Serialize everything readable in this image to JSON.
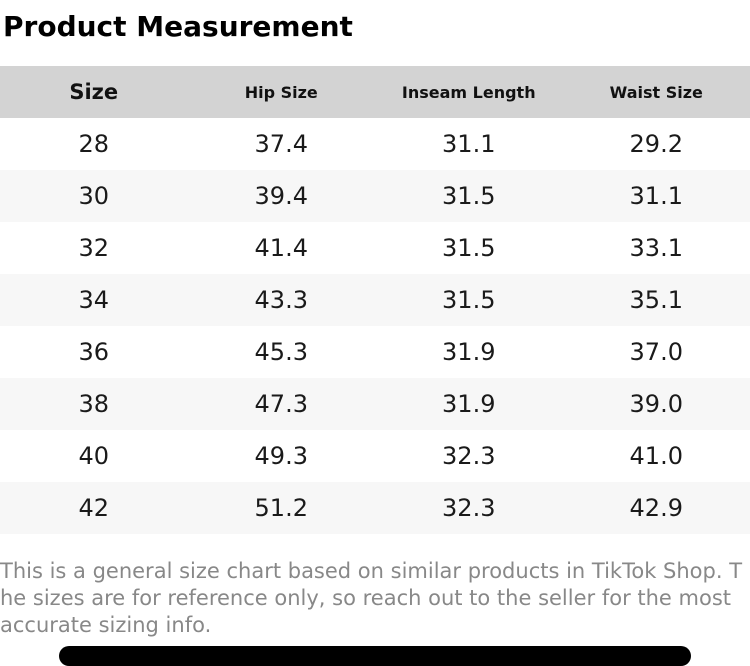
{
  "title": "Product Measurement",
  "table": {
    "columns": [
      "Size",
      "Hip Size",
      "Inseam Length",
      "Waist Size"
    ],
    "rows": [
      [
        "28",
        "37.4",
        "31.1",
        "29.2"
      ],
      [
        "30",
        "39.4",
        "31.5",
        "31.1"
      ],
      [
        "32",
        "41.4",
        "31.5",
        "33.1"
      ],
      [
        "34",
        "43.3",
        "31.5",
        "35.1"
      ],
      [
        "36",
        "45.3",
        "31.9",
        "37.0"
      ],
      [
        "38",
        "47.3",
        "31.9",
        "39.0"
      ],
      [
        "40",
        "49.3",
        "32.3",
        "41.0"
      ],
      [
        "42",
        "51.2",
        "32.3",
        "42.9"
      ]
    ]
  },
  "disclaimer": "This is a general size chart based on similar products in TikTok Shop. The sizes are for reference only, so reach out to the seller for the most accurate sizing info.",
  "chart_data": {
    "type": "table",
    "title": "Product Measurement",
    "categories": [
      "Size",
      "Hip Size",
      "Inseam Length",
      "Waist Size"
    ],
    "series": [
      {
        "name": "Size",
        "values": [
          28,
          30,
          32,
          34,
          36,
          38,
          40,
          42
        ]
      },
      {
        "name": "Hip Size",
        "values": [
          37.4,
          39.4,
          41.4,
          43.3,
          45.3,
          47.3,
          49.3,
          51.2
        ]
      },
      {
        "name": "Inseam Length",
        "values": [
          31.1,
          31.5,
          31.5,
          31.5,
          31.9,
          31.9,
          32.3,
          32.3
        ]
      },
      {
        "name": "Waist Size",
        "values": [
          29.2,
          31.1,
          33.1,
          35.1,
          37.0,
          39.0,
          41.0,
          42.9
        ]
      }
    ]
  },
  "colors": {
    "header_bg": "#d3d3d3",
    "row_alt_bg": "#f7f7f7",
    "disclaimer_text": "#888888",
    "button_bg": "#000000"
  }
}
